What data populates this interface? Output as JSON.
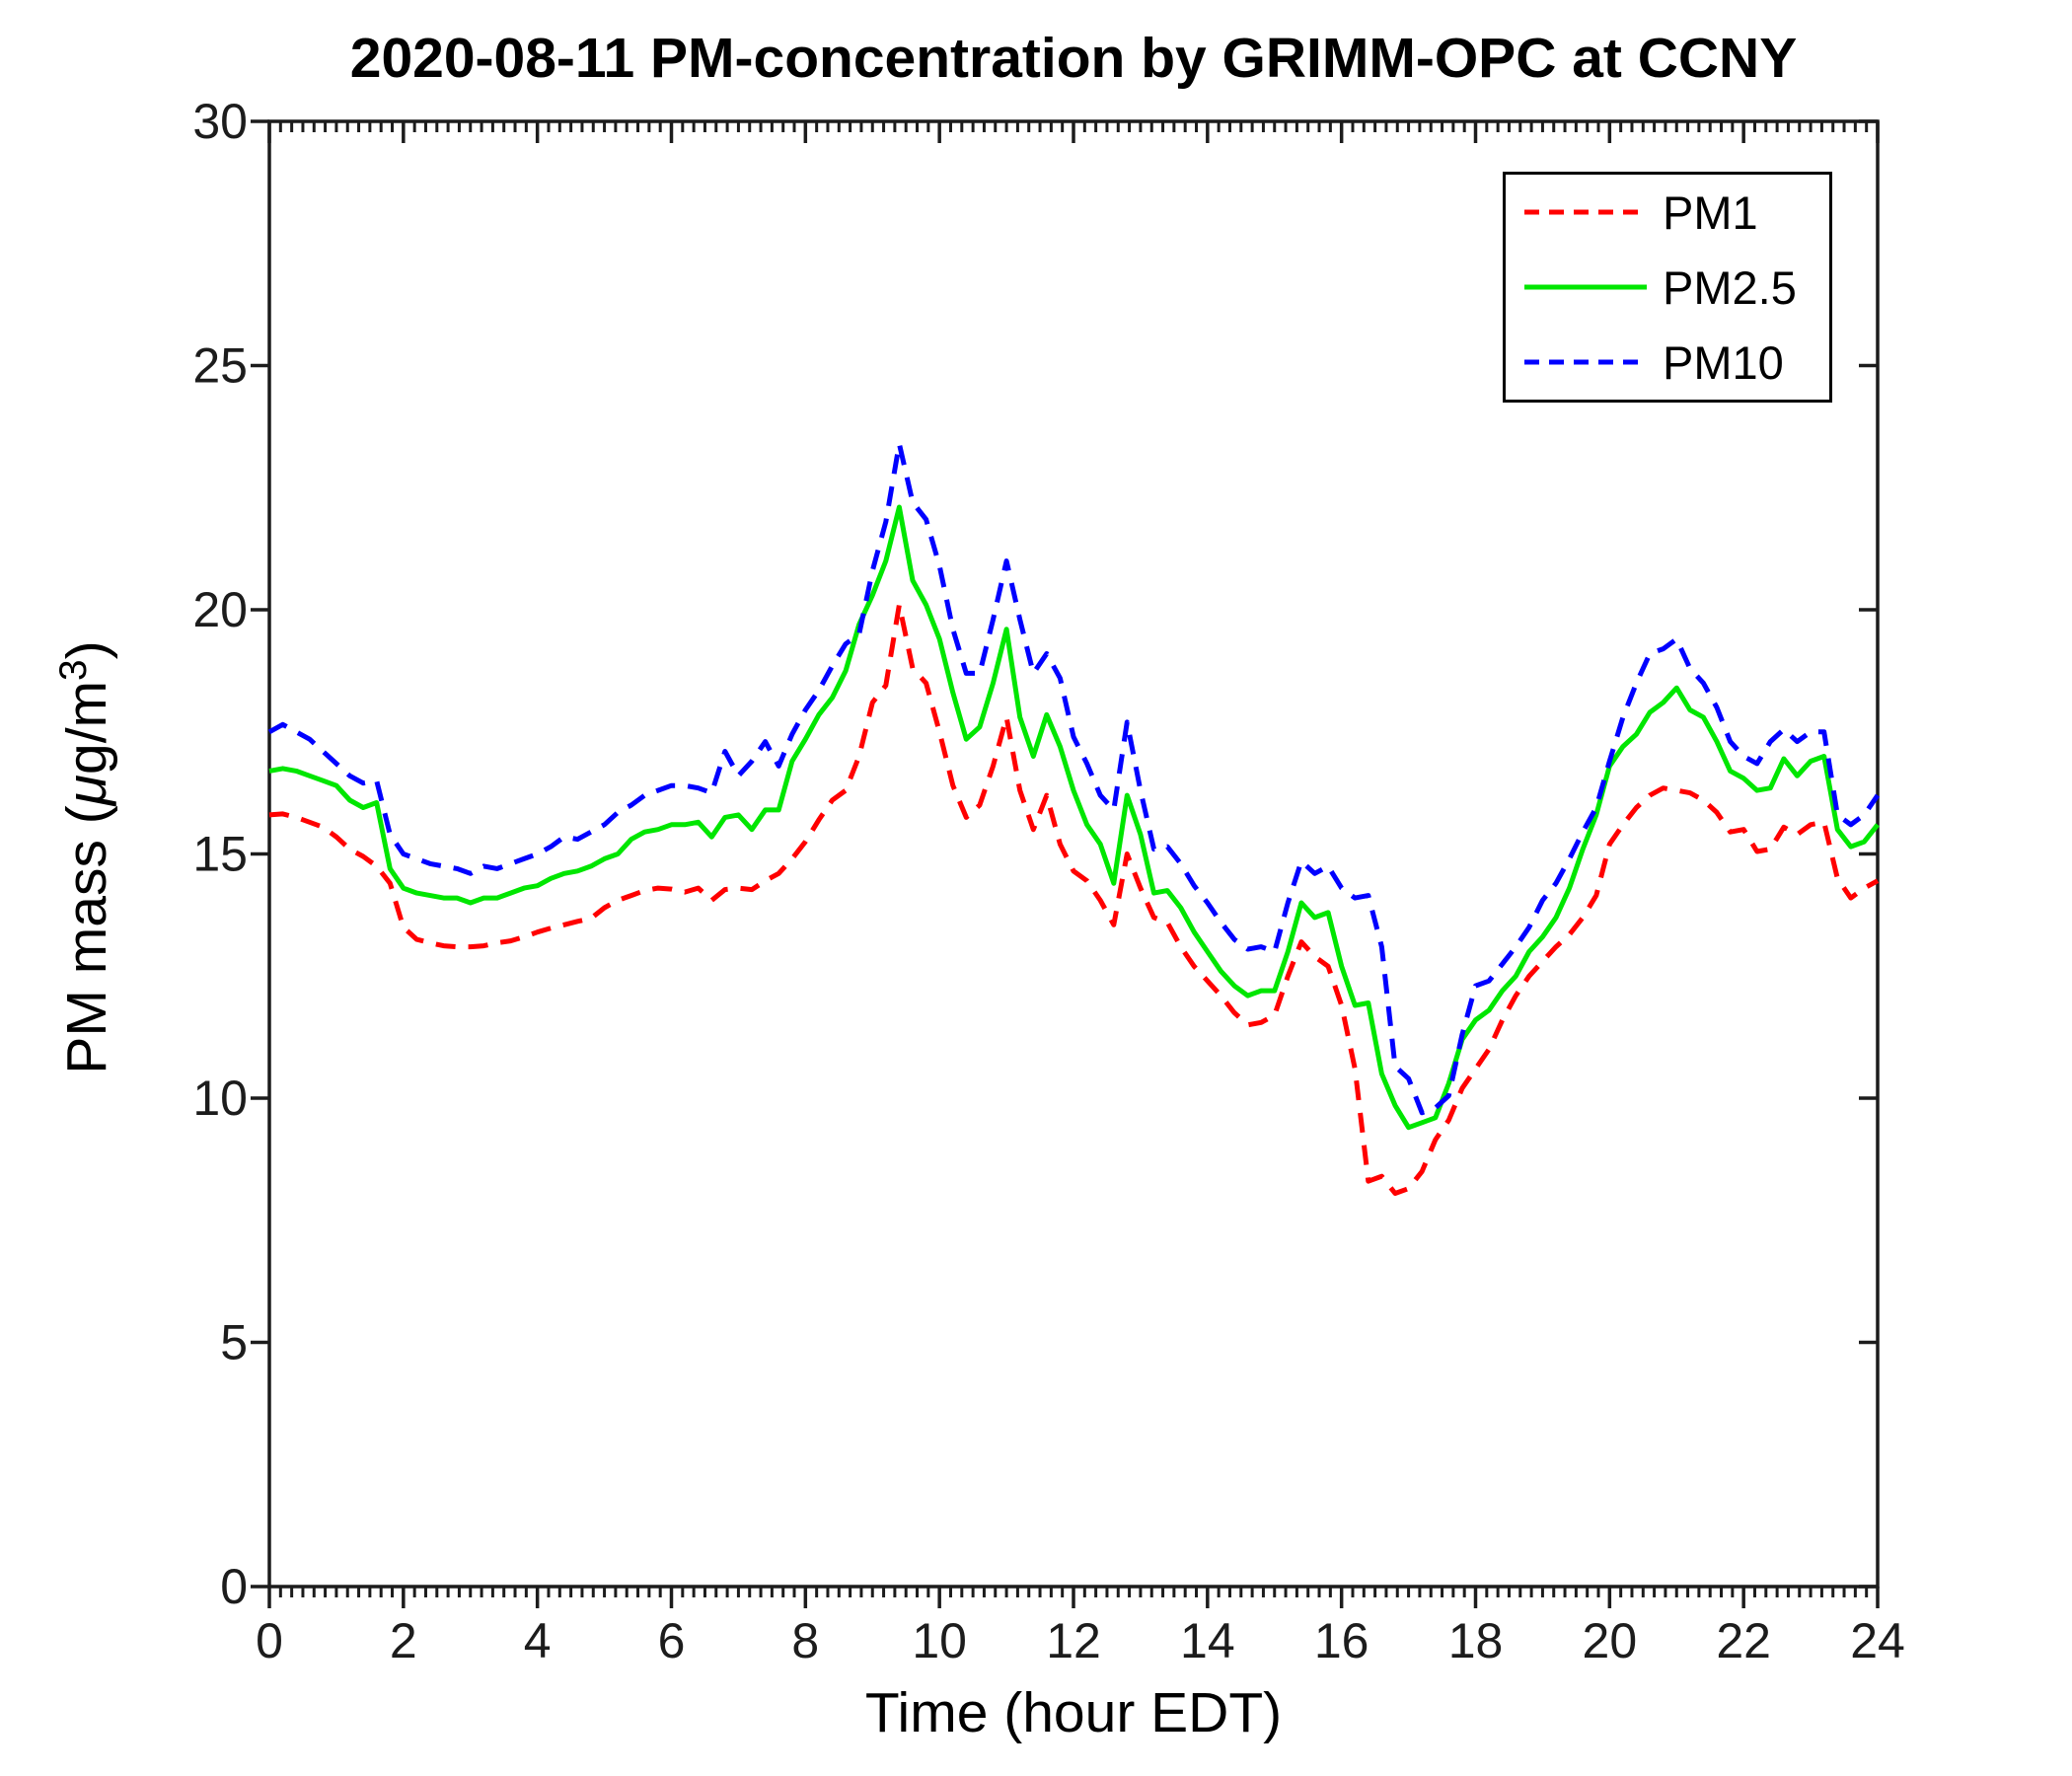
{
  "chart_data": {
    "type": "line",
    "title": "2020-08-11 PM-concentration by GRIMM-OPC at CCNY",
    "xlabel": "Time (hour EDT)",
    "ylabel": "PM mass (μg/m³)",
    "ylabel_parts": {
      "pre": "PM mass (",
      "mu": "μ",
      "mid": "g/m",
      "sup": "3",
      "post": ")"
    },
    "x_axis": {
      "min": 0,
      "max": 24,
      "major_ticks": [
        0,
        2,
        4,
        6,
        8,
        10,
        12,
        14,
        16,
        18,
        20,
        22,
        24
      ],
      "minor_tick_step_hours": 0.16667
    },
    "y_axis": {
      "min": 0,
      "max": 30,
      "major_ticks": [
        0,
        5,
        10,
        15,
        20,
        25,
        30
      ]
    },
    "grid": "off",
    "legend_position": "top-right-inside",
    "x_start": 0,
    "x_step": 0.2,
    "series": [
      {
        "name": "PM1",
        "color": "#ff0000",
        "style": "dashed",
        "values": [
          15.8,
          15.82,
          15.75,
          15.65,
          15.55,
          15.35,
          15.1,
          14.95,
          14.75,
          14.4,
          13.5,
          13.25,
          13.18,
          13.12,
          13.1,
          13.1,
          13.12,
          13.18,
          13.22,
          13.3,
          13.4,
          13.48,
          13.55,
          13.62,
          13.68,
          13.9,
          14.05,
          14.15,
          14.25,
          14.3,
          14.28,
          14.22,
          14.3,
          14.05,
          14.27,
          14.3,
          14.27,
          14.45,
          14.6,
          14.9,
          15.25,
          15.7,
          16.1,
          16.3,
          17.0,
          18.1,
          18.45,
          20.1,
          18.8,
          18.5,
          17.5,
          16.4,
          15.75,
          16.0,
          16.8,
          17.8,
          16.3,
          15.5,
          16.2,
          15.2,
          14.65,
          14.45,
          14.05,
          13.55,
          15.0,
          14.3,
          13.7,
          13.6,
          13.1,
          12.7,
          12.4,
          12.1,
          11.75,
          11.5,
          11.55,
          11.7,
          12.5,
          13.2,
          12.9,
          12.7,
          11.9,
          10.6,
          8.3,
          8.4,
          8.05,
          8.15,
          8.5,
          9.15,
          9.55,
          10.2,
          10.6,
          11.0,
          11.6,
          12.1,
          12.5,
          12.8,
          13.1,
          13.35,
          13.7,
          14.15,
          15.2,
          15.6,
          15.95,
          16.2,
          16.35,
          16.3,
          16.25,
          16.1,
          15.85,
          15.45,
          15.5,
          15.05,
          15.1,
          15.55,
          15.4,
          15.6,
          15.65,
          14.5,
          14.1,
          14.3,
          14.45
        ]
      },
      {
        "name": "PM2.5",
        "color": "#00e600",
        "style": "solid",
        "values": [
          16.7,
          16.75,
          16.7,
          16.6,
          16.5,
          16.4,
          16.1,
          15.95,
          16.05,
          14.7,
          14.3,
          14.2,
          14.15,
          14.1,
          14.1,
          14.0,
          14.1,
          14.1,
          14.2,
          14.3,
          14.35,
          14.5,
          14.6,
          14.65,
          14.75,
          14.9,
          15.0,
          15.3,
          15.45,
          15.5,
          15.6,
          15.6,
          15.65,
          15.35,
          15.75,
          15.8,
          15.5,
          15.9,
          15.9,
          16.9,
          17.35,
          17.85,
          18.2,
          18.75,
          19.7,
          20.3,
          21.0,
          22.1,
          20.6,
          20.1,
          19.4,
          18.3,
          17.35,
          17.6,
          18.5,
          19.6,
          17.8,
          17.0,
          17.85,
          17.2,
          16.3,
          15.6,
          15.2,
          14.4,
          16.2,
          15.4,
          14.2,
          14.25,
          13.9,
          13.4,
          13.0,
          12.6,
          12.3,
          12.1,
          12.2,
          12.2,
          13.0,
          14.0,
          13.7,
          13.8,
          12.7,
          11.9,
          11.95,
          10.5,
          9.85,
          9.4,
          9.5,
          9.6,
          10.3,
          11.2,
          11.6,
          11.8,
          12.2,
          12.5,
          13.0,
          13.3,
          13.7,
          14.3,
          15.1,
          15.8,
          16.8,
          17.2,
          17.45,
          17.9,
          18.1,
          18.4,
          17.95,
          17.8,
          17.3,
          16.7,
          16.55,
          16.3,
          16.35,
          16.95,
          16.6,
          16.9,
          17.0,
          15.5,
          15.15,
          15.25,
          15.6
        ]
      },
      {
        "name": "PM10",
        "color": "#0000ff",
        "style": "dashed",
        "values": [
          17.5,
          17.65,
          17.5,
          17.35,
          17.1,
          16.85,
          16.6,
          16.45,
          16.5,
          15.4,
          15.0,
          14.9,
          14.8,
          14.75,
          14.7,
          14.6,
          14.75,
          14.7,
          14.8,
          14.9,
          15.0,
          15.15,
          15.35,
          15.3,
          15.45,
          15.6,
          15.85,
          16.0,
          16.2,
          16.3,
          16.4,
          16.4,
          16.35,
          16.25,
          17.1,
          16.6,
          16.9,
          17.3,
          16.8,
          17.45,
          17.95,
          18.35,
          18.85,
          19.3,
          19.5,
          20.8,
          21.8,
          23.4,
          22.2,
          21.85,
          20.9,
          19.6,
          18.7,
          18.7,
          19.8,
          21.0,
          19.8,
          18.7,
          19.1,
          18.6,
          17.4,
          16.85,
          16.2,
          15.9,
          17.7,
          16.3,
          15.1,
          15.15,
          14.8,
          14.35,
          14.0,
          13.6,
          13.25,
          13.05,
          13.1,
          13.0,
          14.0,
          14.85,
          14.6,
          14.75,
          14.3,
          14.1,
          14.15,
          13.1,
          10.65,
          10.4,
          9.7,
          9.8,
          10.05,
          11.3,
          12.3,
          12.4,
          12.75,
          13.1,
          13.5,
          14.05,
          14.4,
          14.9,
          15.45,
          15.95,
          16.9,
          17.8,
          18.5,
          19.1,
          19.2,
          19.4,
          18.8,
          18.5,
          18.0,
          17.3,
          17.0,
          16.85,
          17.3,
          17.55,
          17.3,
          17.5,
          17.5,
          15.8,
          15.6,
          15.8,
          16.2
        ]
      }
    ],
    "legend": {
      "entries": [
        "PM1",
        "PM2.5",
        "PM10"
      ]
    }
  }
}
